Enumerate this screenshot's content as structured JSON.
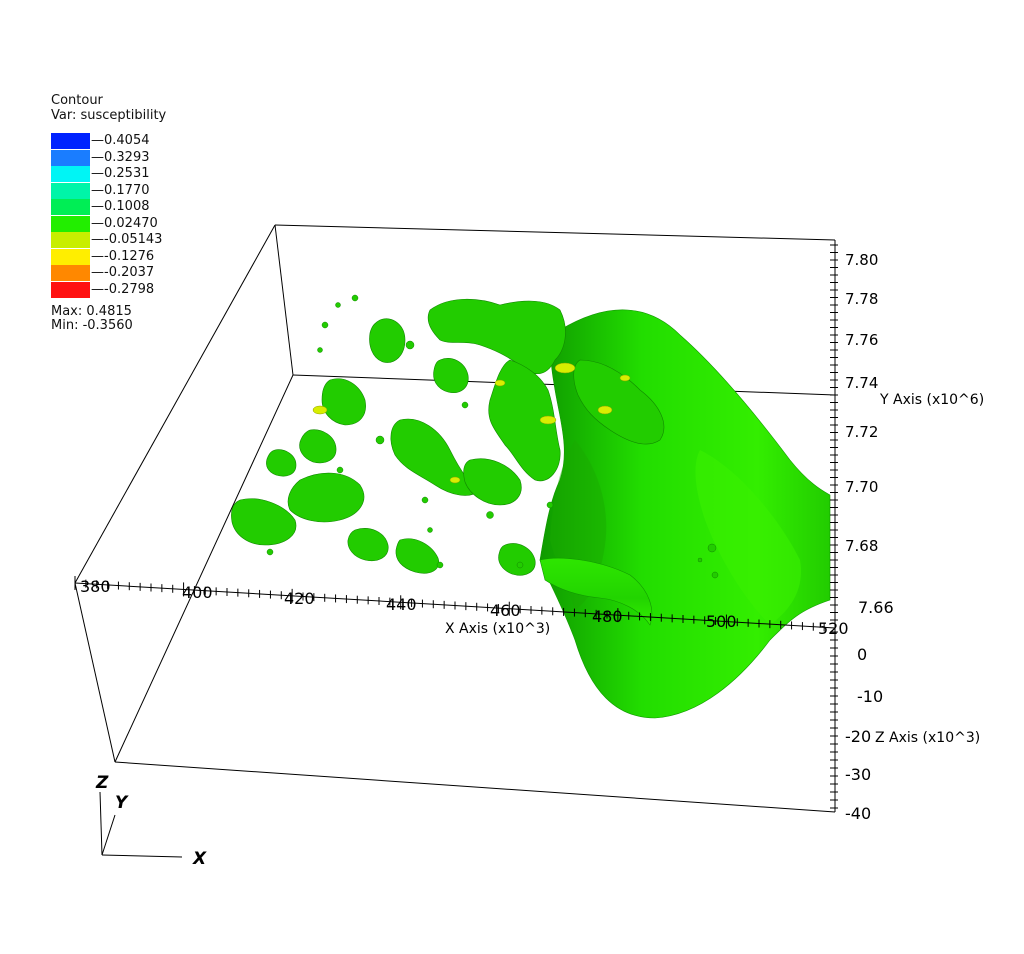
{
  "legend": {
    "title": "Contour",
    "variable": "Var: susceptibility",
    "levels": [
      {
        "label": "0.4054",
        "color": "#0022ff"
      },
      {
        "label": "0.3293",
        "color": "#1a7dff"
      },
      {
        "label": "0.2531",
        "color": "#00f5f5"
      },
      {
        "label": "0.1770",
        "color": "#00f5a8"
      },
      {
        "label": "0.1008",
        "color": "#00ee55"
      },
      {
        "label": "0.02470",
        "color": "#22ee00"
      },
      {
        "label": "-0.05143",
        "color": "#c8ee00"
      },
      {
        "label": "-0.1276",
        "color": "#ffee00"
      },
      {
        "label": "-0.2037",
        "color": "#ff8800"
      },
      {
        "label": "-0.2798",
        "color": "#ff1111"
      }
    ],
    "max": "Max:  0.4815",
    "min": "Min: -0.3560"
  },
  "axes": {
    "x": {
      "title": "X Axis (x10^3)",
      "ticks": [
        "380",
        "400",
        "420",
        "440",
        "460",
        "480",
        "500",
        "520"
      ]
    },
    "y": {
      "title": "Y Axis (x10^6)",
      "ticks": [
        "7.80",
        "7.78",
        "7.76",
        "7.74",
        "7.72",
        "7.70",
        "7.68",
        "7.66"
      ]
    },
    "z": {
      "title": "Z Axis (x10^3)",
      "ticks": [
        "0",
        "-10",
        "-20",
        "-30",
        "-40"
      ]
    }
  },
  "triad": {
    "z": "Z",
    "y": "Y",
    "x": "X"
  },
  "colors": {
    "surface": "#22dd00",
    "surface_dark": "#119900",
    "highlight": "#ddee00",
    "box": "#000000"
  }
}
